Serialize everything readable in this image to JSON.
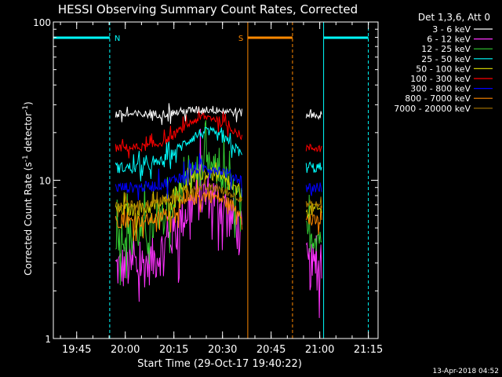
{
  "chart_data": {
    "type": "line",
    "title": "HESSI Observing Summary Count Rates, Corrected",
    "xlabel": "Start Time (29-Oct-17 19:40:22)",
    "ylabel_main": "Corrected Count Rate (s",
    "ylabel_sup1": "-1",
    "ylabel_mid": " detector",
    "ylabel_sup2": "-1",
    "ylabel_end": ")",
    "footer": "13-Apr-2018 04:52",
    "yscale": "log",
    "ylim": [
      1,
      100
    ],
    "xlim_minutes": [
      19.63,
      21.3
    ],
    "y_ticks": [
      {
        "label": "1",
        "value": 1
      },
      {
        "label": "10",
        "value": 10
      },
      {
        "label": "100",
        "value": 100
      }
    ],
    "x_ticks": [
      {
        "label": "19:45",
        "hours": 19.75
      },
      {
        "label": "20:00",
        "hours": 20.0
      },
      {
        "label": "20:15",
        "hours": 20.25
      },
      {
        "label": "20:30",
        "hours": 20.5
      },
      {
        "label": "20:45",
        "hours": 20.75
      },
      {
        "label": "21:00",
        "hours": 21.0
      },
      {
        "label": "21:15",
        "hours": 21.25
      }
    ],
    "legend_header": "Det 1,3,6, Att 0",
    "legend_position": "top-right outside",
    "series": [
      {
        "name": "3 - 6 keV",
        "color": "#ffffff",
        "base": 26,
        "peak": 28,
        "noise": 0.06
      },
      {
        "name": "6 - 12 keV",
        "color": "#ff33ff",
        "base": 2.8,
        "peak": 8,
        "noise": 0.35
      },
      {
        "name": "12 - 25 keV",
        "color": "#33cc33",
        "base": 4.5,
        "peak": 12,
        "noise": 0.25
      },
      {
        "name": "25 - 50 keV",
        "color": "#00ffff",
        "base": 12,
        "peak": 20,
        "noise": 0.08
      },
      {
        "name": "50 - 100 keV",
        "color": "#cccc00",
        "base": 6.5,
        "peak": 11,
        "noise": 0.1
      },
      {
        "name": "100 - 300 keV",
        "color": "#ff0000",
        "base": 16,
        "peak": 25,
        "noise": 0.06
      },
      {
        "name": "300 - 800 keV",
        "color": "#0000ff",
        "base": 9,
        "peak": 12,
        "noise": 0.08
      },
      {
        "name": "800 - 7000 keV",
        "color": "#ff8800",
        "base": 5.5,
        "peak": 8,
        "noise": 0.1
      },
      {
        "name": "7000 - 20000 keV",
        "color": "#aa7700",
        "base": 7,
        "peak": 9,
        "noise": 0.06
      }
    ],
    "data_intervals_hours": [
      [
        19.95,
        20.6
      ],
      [
        20.93,
        21.01
      ]
    ],
    "flag_bars": [
      {
        "label": "N",
        "color": "#00ffff",
        "hours": [
          19.63,
          19.92
        ]
      },
      {
        "label": "S",
        "color": "#ff8800",
        "hours": [
          20.63,
          20.86
        ]
      },
      {
        "label": "",
        "color": "#00ffff",
        "hours": [
          21.02,
          21.25
        ]
      }
    ],
    "vertical_markers": [
      {
        "hours": 19.63,
        "color": "#00ffff",
        "style": "solid"
      },
      {
        "hours": 19.92,
        "color": "#00ffff",
        "style": "dashed"
      },
      {
        "hours": 20.63,
        "color": "#ff8800",
        "style": "solid"
      },
      {
        "hours": 20.86,
        "color": "#ff8800",
        "style": "dashed"
      },
      {
        "hours": 21.02,
        "color": "#00ffff",
        "style": "solid"
      },
      {
        "hours": 21.25,
        "color": "#00ffff",
        "style": "dashed"
      }
    ],
    "grid": false
  }
}
